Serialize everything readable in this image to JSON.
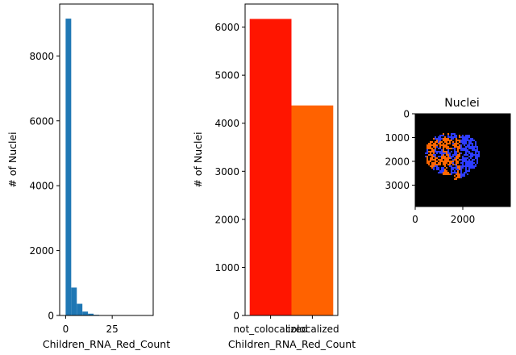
{
  "chart_data": [
    {
      "type": "bar",
      "subtype": "histogram",
      "title": "",
      "xlabel": "Children_RNA_Red_Count",
      "ylabel": "# of Nuclei",
      "bin_edges": [
        0,
        3,
        6,
        9,
        12,
        15,
        18,
        21,
        24,
        27,
        30,
        33,
        36,
        39,
        42,
        45
      ],
      "values": [
        9150,
        860,
        360,
        120,
        55,
        20,
        8,
        4,
        2,
        1,
        1,
        0,
        0,
        0,
        0
      ],
      "xlim": [
        -3.2,
        47
      ],
      "ylim": [
        0,
        9600
      ],
      "xticks": [
        0,
        25
      ],
      "yticks": [
        0,
        2000,
        4000,
        6000,
        8000
      ],
      "color": "#1f77b4",
      "grid": false
    },
    {
      "type": "bar",
      "title": "",
      "xlabel": "Children_RNA_Red_Count",
      "ylabel": "# of Nuclei",
      "categories": [
        "not_colocalized",
        "colocalized"
      ],
      "values": [
        6170,
        4370
      ],
      "colors": [
        "#ff1500",
        "#ff6200"
      ],
      "ylim": [
        0,
        6480
      ],
      "yticks": [
        0,
        1000,
        2000,
        3000,
        4000,
        5000,
        6000
      ],
      "grid": false
    },
    {
      "type": "image",
      "title": "Nuclei",
      "xticks": [
        0,
        2000
      ],
      "yticks": [
        0,
        1000,
        2000,
        3000
      ],
      "xlim": [
        0,
        4000
      ],
      "ylim": [
        3900,
        0
      ],
      "background": "#000000",
      "colors": [
        "#2d3cff",
        "#ff6600"
      ]
    }
  ]
}
